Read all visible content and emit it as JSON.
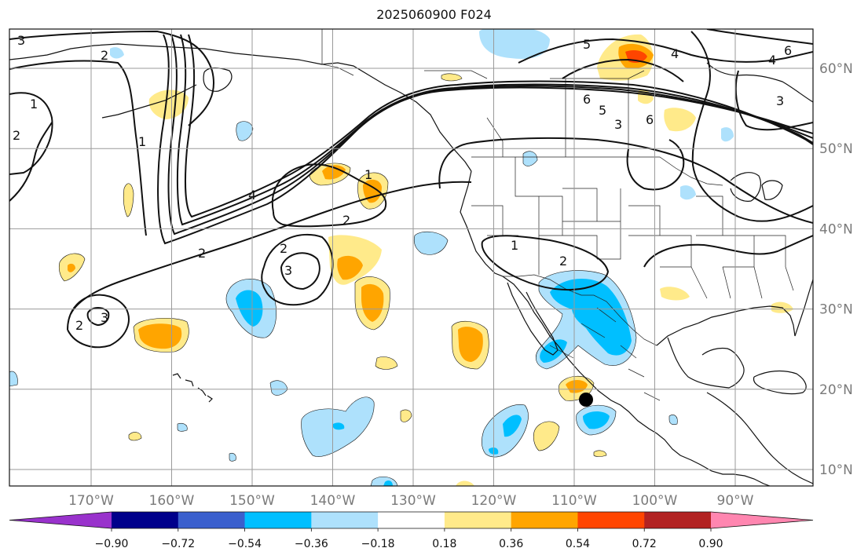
{
  "title": "2025060900 F024",
  "longitude_labels": [
    "170°W",
    "160°W",
    "150°W",
    "140°W",
    "130°W",
    "120°W",
    "110°W",
    "100°W",
    "90°W"
  ],
  "latitude_labels": [
    "60°N",
    "50°N",
    "40°N",
    "30°N",
    "20°N",
    "10°N"
  ],
  "colorbar": {
    "tick_labels": [
      "−0.90",
      "−0.72",
      "−0.54",
      "−0.36",
      "−0.18",
      "0.18",
      "0.36",
      "0.54",
      "0.72",
      "0.90"
    ],
    "colors": [
      "#9932cc",
      "#00008b",
      "#3a5fcd",
      "#00bfff",
      "#aee1fc",
      "#ffffff",
      "#ffea8a",
      "#ffa500",
      "#ff4500",
      "#b22222",
      "#ff86b0"
    ]
  },
  "contour_labels": [
    "1",
    "2",
    "3",
    "4",
    "5",
    "6"
  ],
  "fill_colors": {
    "pos_light": "#ffea8a",
    "pos_mid": "#ffa500",
    "pos_strong": "#ff4500",
    "neg_light": "#aee1fc",
    "neg_mid": "#00bfff"
  }
}
